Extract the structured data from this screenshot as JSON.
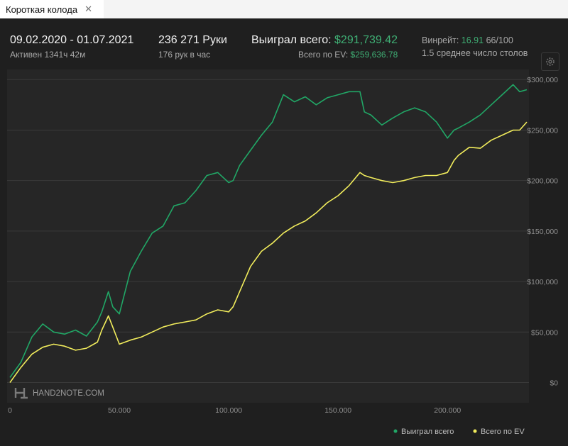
{
  "tab": {
    "label": "Короткая колода",
    "close": "✕"
  },
  "header": {
    "date_range": "09.02.2020 - 01.07.2021",
    "active": "Активен 1341ч 42м",
    "hands": "236 271 Руки",
    "hands_per_hour": "176 рук в час",
    "won_label": "Выиграл всего:",
    "won_value": "$291,739.42",
    "ev_label": "Всего по EV:",
    "ev_value": "$259,636.78",
    "winrate_label": "Винрейт:",
    "winrate_value": "16.91",
    "winrate_unit": "66/100",
    "tables": "1.5 среднее число столов",
    "settings_icon": "gear-icon"
  },
  "watermark": "HAND2NOTE.COM",
  "colors": {
    "won": "#21a766",
    "ev": "#f1ec5c",
    "grid": "#3a3a3a",
    "background": "#1f1f1f"
  },
  "chart_data": {
    "type": "line",
    "xlim": [
      0,
      236271
    ],
    "ylim": [
      -20000,
      310000
    ],
    "x_ticks": [
      0,
      50000,
      100000,
      150000,
      200000
    ],
    "x_tick_labels": [
      "0",
      "50.000",
      "100.000",
      "150.000",
      "200.000"
    ],
    "y_ticks": [
      0,
      50000,
      100000,
      150000,
      200000,
      250000,
      300000
    ],
    "y_tick_labels": [
      "$0",
      "$50,000",
      "$100,000",
      "$150,000",
      "$200,000",
      "$250,000",
      "$300,000"
    ],
    "legend_position": "bottom-right",
    "x": [
      0,
      5000,
      10000,
      15000,
      20000,
      25000,
      30000,
      35000,
      40000,
      42000,
      45000,
      47000,
      50000,
      55000,
      60000,
      65000,
      70000,
      75000,
      80000,
      85000,
      90000,
      95000,
      100000,
      102000,
      105000,
      110000,
      115000,
      120000,
      125000,
      130000,
      135000,
      140000,
      145000,
      150000,
      155000,
      160000,
      162000,
      165000,
      170000,
      175000,
      180000,
      185000,
      190000,
      195000,
      200000,
      203000,
      205000,
      210000,
      215000,
      220000,
      225000,
      230000,
      233000,
      236271
    ],
    "series": [
      {
        "name": "Выиграл всего",
        "color": "#21a766",
        "values": [
          5000,
          20000,
          45000,
          58000,
          50000,
          48000,
          52000,
          46000,
          60000,
          70000,
          90000,
          75000,
          68000,
          110000,
          130000,
          148000,
          155000,
          175000,
          178000,
          190000,
          205000,
          208000,
          198000,
          200000,
          215000,
          230000,
          245000,
          258000,
          285000,
          278000,
          283000,
          275000,
          282000,
          285000,
          288000,
          288000,
          268000,
          265000,
          255000,
          262000,
          268000,
          272000,
          268000,
          258000,
          242000,
          250000,
          252000,
          258000,
          265000,
          275000,
          285000,
          295000,
          288000,
          290000
        ]
      },
      {
        "name": "Всего по EV",
        "color": "#f1ec5c",
        "values": [
          0,
          15000,
          28000,
          35000,
          38000,
          36000,
          32000,
          34000,
          40000,
          52000,
          66000,
          55000,
          38000,
          42000,
          45000,
          50000,
          55000,
          58000,
          60000,
          62000,
          68000,
          72000,
          70000,
          75000,
          90000,
          115000,
          130000,
          138000,
          148000,
          155000,
          160000,
          168000,
          178000,
          185000,
          195000,
          208000,
          205000,
          203000,
          200000,
          198000,
          200000,
          203000,
          205000,
          205000,
          208000,
          220000,
          225000,
          233000,
          232000,
          240000,
          245000,
          250000,
          250000,
          258000
        ]
      }
    ]
  }
}
